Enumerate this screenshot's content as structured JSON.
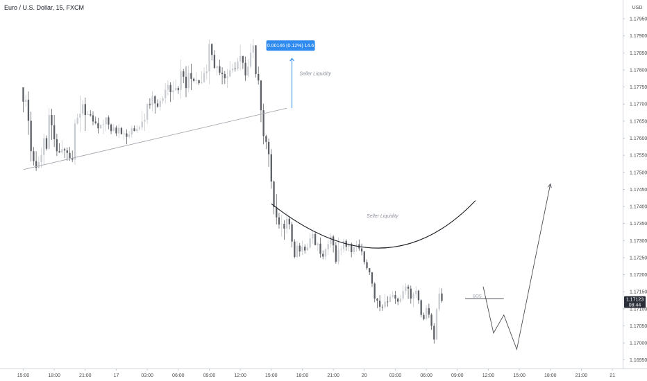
{
  "header": {
    "title": "Euro / U.S. Dollar, 15, FXCM",
    "currency": "USD"
  },
  "chart_data": {
    "type": "candlestick",
    "title": "Euro / U.S. Dollar, 15, FXCM",
    "ylabel": "USD",
    "ylim": [
      1.16925,
      1.18005
    ],
    "y_ticks": [
      "1.17950",
      "1.17900",
      "1.17850",
      "1.17800",
      "1.17750",
      "1.17700",
      "1.17650",
      "1.17600",
      "1.17550",
      "1.17500",
      "1.17450",
      "1.17400",
      "1.17350",
      "1.17300",
      "1.17250",
      "1.17200",
      "1.17150",
      "1.17100",
      "1.17050",
      "1.17000",
      "1.16950"
    ],
    "y_tick_values": [
      1.1795,
      1.179,
      1.1785,
      1.178,
      1.1775,
      1.177,
      1.1765,
      1.176,
      1.1755,
      1.175,
      1.1745,
      1.174,
      1.1735,
      1.173,
      1.1725,
      1.172,
      1.1715,
      1.171,
      1.1705,
      1.17,
      1.1695
    ],
    "x_ticks": [
      "15:00",
      "18:00",
      "21:00",
      "17",
      "03:00",
      "06:00",
      "09:00",
      "12:00",
      "15:00",
      "18:00",
      "21:00",
      "20",
      "03:00",
      "06:00",
      "09:00",
      "12:00",
      "15:00",
      "18:00",
      "21:00",
      "21"
    ],
    "x_tick_index": [
      0,
      12,
      24,
      36,
      48,
      60,
      72,
      84,
      96,
      108,
      120,
      132,
      144,
      156,
      168,
      180,
      192,
      204,
      216,
      228
    ],
    "x_range": [
      -9,
      232
    ],
    "grid": false,
    "current_price": {
      "value": 1.17123,
      "label": "1.17123",
      "countdown": "08:44"
    },
    "measure_label": "0.00146 (0.12%) 14.6",
    "annotations": [
      {
        "text": "Seller Liquidity",
        "x": 113,
        "y": 1.17785
      },
      {
        "text": "Seller Liquidity",
        "x": 139,
        "y": 1.17368
      },
      {
        "text": "BOS",
        "x": 174,
        "y": 1.17133
      }
    ],
    "trendline": [
      {
        "x": 0,
        "y": 1.17508
      },
      {
        "x": 102,
        "y": 1.17688
      }
    ],
    "measure_arrow": {
      "x": 104,
      "y_from": 1.17688,
      "y_to": 1.17834
    },
    "curve": [
      {
        "x": 96,
        "y": 1.17408
      },
      {
        "x": 138,
        "y": 1.17278
      },
      {
        "x": 175,
        "y": 1.17417
      }
    ],
    "bos_line": [
      {
        "x": 171,
        "y": 1.1713
      },
      {
        "x": 186,
        "y": 1.1713
      }
    ],
    "projection": [
      {
        "x": 178,
        "y": 1.17165
      },
      {
        "x": 182,
        "y": 1.17029
      },
      {
        "x": 186,
        "y": 1.17082
      },
      {
        "x": 191,
        "y": 1.16981
      },
      {
        "x": 204,
        "y": 1.17466
      }
    ],
    "candles": [
      [
        1.17749,
        1.17707,
        1.17738,
        1.17676
      ],
      [
        1.17707,
        1.17713,
        1.17727,
        1.17692
      ],
      [
        1.17713,
        1.17651,
        1.17737,
        1.1761
      ],
      [
        1.17651,
        1.17562,
        1.17678,
        1.17532
      ],
      [
        1.17562,
        1.17533,
        1.17574,
        1.1752
      ],
      [
        1.17533,
        1.17513,
        1.17562,
        1.17504
      ],
      [
        1.17513,
        1.1753,
        1.17547,
        1.17511
      ],
      [
        1.1753,
        1.17551,
        1.17571,
        1.17513
      ],
      [
        1.17551,
        1.176,
        1.17613,
        1.17521
      ],
      [
        1.176,
        1.17569,
        1.17608,
        1.17564
      ],
      [
        1.17569,
        1.17668,
        1.17689,
        1.17566
      ],
      [
        1.17668,
        1.17638,
        1.17686,
        1.17595
      ],
      [
        1.17638,
        1.17597,
        1.17668,
        1.17574
      ],
      [
        1.17597,
        1.17562,
        1.17613,
        1.17548
      ],
      [
        1.17562,
        1.17558,
        1.17585,
        1.17557
      ],
      [
        1.17558,
        1.17568,
        1.17594,
        1.17553
      ],
      [
        1.17568,
        1.17564,
        1.17572,
        1.17542
      ],
      [
        1.17564,
        1.17557,
        1.17573,
        1.17534
      ],
      [
        1.17557,
        1.17542,
        1.17574,
        1.17534
      ],
      [
        1.17542,
        1.17537,
        1.17564,
        1.1753
      ],
      [
        1.17537,
        1.17643,
        1.17655,
        1.17522
      ],
      [
        1.17643,
        1.1766,
        1.17672,
        1.1764
      ],
      [
        1.1766,
        1.17672,
        1.17725,
        1.17618
      ],
      [
        1.17672,
        1.177,
        1.17712,
        1.17666
      ],
      [
        1.177,
        1.17668,
        1.17719,
        1.17621
      ],
      [
        1.17668,
        1.1767,
        1.17681,
        1.17668
      ],
      [
        1.1767,
        1.17667,
        1.17682,
        1.17663
      ],
      [
        1.17667,
        1.17649,
        1.17679,
        1.17638
      ],
      [
        1.17649,
        1.17644,
        1.17663,
        1.17641
      ],
      [
        1.17644,
        1.17629,
        1.1766,
        1.17614
      ],
      [
        1.17629,
        1.17639,
        1.1764,
        1.17628
      ],
      [
        1.17639,
        1.17641,
        1.17654,
        1.17612
      ],
      [
        1.17641,
        1.17661,
        1.17661,
        1.1762
      ],
      [
        1.17661,
        1.1764,
        1.17667,
        1.17626
      ],
      [
        1.1764,
        1.17621,
        1.17643,
        1.17612
      ],
      [
        1.17621,
        1.17631,
        1.17641,
        1.17619
      ],
      [
        1.17631,
        1.17614,
        1.17637,
        1.17606
      ],
      [
        1.17614,
        1.1763,
        1.17642,
        1.17601
      ],
      [
        1.1763,
        1.17612,
        1.17633,
        1.17611
      ],
      [
        1.17612,
        1.17614,
        1.17624,
        1.17595
      ],
      [
        1.17614,
        1.17604,
        1.17626,
        1.17582
      ],
      [
        1.17604,
        1.17611,
        1.17621,
        1.176
      ],
      [
        1.17611,
        1.17629,
        1.17637,
        1.17601
      ],
      [
        1.17629,
        1.17621,
        1.17637,
        1.1762
      ],
      [
        1.17621,
        1.17627,
        1.17638,
        1.17616
      ],
      [
        1.17627,
        1.17632,
        1.17637,
        1.17622
      ],
      [
        1.17632,
        1.17649,
        1.17681,
        1.17624
      ],
      [
        1.17649,
        1.17654,
        1.17672,
        1.17621
      ],
      [
        1.17654,
        1.177,
        1.17703,
        1.17642
      ],
      [
        1.177,
        1.17697,
        1.17717,
        1.17686
      ],
      [
        1.17697,
        1.17723,
        1.17738,
        1.17679
      ],
      [
        1.17723,
        1.17702,
        1.17726,
        1.17672
      ],
      [
        1.17702,
        1.17692,
        1.17714,
        1.17689
      ],
      [
        1.17692,
        1.17709,
        1.17718,
        1.17681
      ],
      [
        1.17709,
        1.17717,
        1.17723,
        1.17701
      ],
      [
        1.17717,
        1.17742,
        1.17761,
        1.17701
      ],
      [
        1.17742,
        1.17756,
        1.1777,
        1.17725
      ],
      [
        1.17756,
        1.17735,
        1.17764,
        1.17706
      ],
      [
        1.17735,
        1.1774,
        1.17767,
        1.17712
      ],
      [
        1.1774,
        1.17747,
        1.17772,
        1.17744
      ],
      [
        1.17747,
        1.17741,
        1.17753,
        1.1773
      ],
      [
        1.17741,
        1.17796,
        1.1783,
        1.17716
      ],
      [
        1.17796,
        1.1778,
        1.17803,
        1.17761
      ],
      [
        1.1778,
        1.17747,
        1.17811,
        1.1772
      ],
      [
        1.17747,
        1.17791,
        1.17813,
        1.17735
      ],
      [
        1.17791,
        1.17774,
        1.17818,
        1.17741
      ],
      [
        1.17774,
        1.17768,
        1.17778,
        1.17764
      ],
      [
        1.17768,
        1.1777,
        1.17793,
        1.17758
      ],
      [
        1.1777,
        1.17761,
        1.17771,
        1.17756
      ],
      [
        1.17761,
        1.17764,
        1.17797,
        1.17759
      ],
      [
        1.17764,
        1.17791,
        1.17808,
        1.17763
      ],
      [
        1.17791,
        1.17796,
        1.17816,
        1.17772
      ],
      [
        1.17796,
        1.17876,
        1.17889,
        1.17758
      ],
      [
        1.17876,
        1.17844,
        1.17878,
        1.17828
      ],
      [
        1.17844,
        1.17806,
        1.17858,
        1.17803
      ],
      [
        1.17806,
        1.17811,
        1.17813,
        1.17783
      ],
      [
        1.17811,
        1.17792,
        1.1783,
        1.17785
      ],
      [
        1.17792,
        1.17788,
        1.17808,
        1.17758
      ],
      [
        1.17788,
        1.17776,
        1.17797,
        1.17759
      ],
      [
        1.17776,
        1.17781,
        1.17803,
        1.17747
      ],
      [
        1.17781,
        1.17799,
        1.17826,
        1.17779
      ],
      [
        1.17799,
        1.17804,
        1.17818,
        1.17791
      ],
      [
        1.17804,
        1.17802,
        1.17823,
        1.17795
      ],
      [
        1.17802,
        1.17825,
        1.17836,
        1.17798
      ],
      [
        1.17825,
        1.17841,
        1.17874,
        1.17799
      ],
      [
        1.17841,
        1.17821,
        1.17841,
        1.17803
      ],
      [
        1.17821,
        1.17784,
        1.17839,
        1.17768
      ],
      [
        1.17784,
        1.1781,
        1.17832,
        1.17778
      ],
      [
        1.1781,
        1.17851,
        1.17877,
        1.17805
      ],
      [
        1.17851,
        1.17872,
        1.17891,
        1.17834
      ],
      [
        1.17872,
        1.17788,
        1.17873,
        1.17778
      ],
      [
        1.17788,
        1.17769,
        1.1781,
        1.17757
      ],
      [
        1.17769,
        1.17682,
        1.1777,
        1.17647
      ],
      [
        1.17682,
        1.17606,
        1.17701,
        1.17582
      ],
      [
        1.17606,
        1.17589,
        1.1761,
        1.17568
      ],
      [
        1.17589,
        1.17553,
        1.17599,
        1.17516
      ],
      [
        1.17553,
        1.17473,
        1.17568,
        1.17452
      ],
      [
        1.17473,
        1.17398,
        1.17476,
        1.17377
      ],
      [
        1.17398,
        1.17368,
        1.17436,
        1.17347
      ],
      [
        1.17368,
        1.17347,
        1.17382,
        1.17335
      ],
      [
        1.17347,
        1.17349,
        1.17376,
        1.17311
      ],
      [
        1.17349,
        1.17335,
        1.1736,
        1.17302
      ],
      [
        1.17335,
        1.17364,
        1.17383,
        1.1732
      ],
      [
        1.17364,
        1.17348,
        1.17371,
        1.17333
      ],
      [
        1.17348,
        1.17297,
        1.17355,
        1.1728
      ],
      [
        1.17297,
        1.17252,
        1.17304,
        1.17248
      ],
      [
        1.17252,
        1.17285,
        1.17299,
        1.17249
      ],
      [
        1.17285,
        1.17268,
        1.17293,
        1.17253
      ],
      [
        1.17268,
        1.17282,
        1.173,
        1.17257
      ],
      [
        1.17282,
        1.17271,
        1.17289,
        1.17262
      ],
      [
        1.17271,
        1.1728,
        1.17292,
        1.17272
      ],
      [
        1.1728,
        1.17306,
        1.17322,
        1.17276
      ],
      [
        1.17306,
        1.17319,
        1.17328,
        1.17291
      ],
      [
        1.17319,
        1.17287,
        1.17326,
        1.17286
      ],
      [
        1.17287,
        1.17291,
        1.17295,
        1.17269
      ],
      [
        1.17291,
        1.17261,
        1.17309,
        1.1725
      ],
      [
        1.17261,
        1.17253,
        1.17271,
        1.17245
      ],
      [
        1.17253,
        1.17274,
        1.17278,
        1.17243
      ],
      [
        1.17274,
        1.1729,
        1.17302,
        1.17258
      ],
      [
        1.1729,
        1.17312,
        1.17321,
        1.17279
      ],
      [
        1.17312,
        1.17286,
        1.17316,
        1.17265
      ],
      [
        1.17286,
        1.17238,
        1.17296,
        1.17232
      ],
      [
        1.17238,
        1.17273,
        1.17309,
        1.1723
      ],
      [
        1.17273,
        1.17275,
        1.17285,
        1.17257
      ],
      [
        1.17275,
        1.17299,
        1.17305,
        1.17265
      ],
      [
        1.17299,
        1.17282,
        1.17304,
        1.1727
      ],
      [
        1.17282,
        1.1729,
        1.17295,
        1.17268
      ],
      [
        1.1729,
        1.17266,
        1.17294,
        1.17251
      ],
      [
        1.17266,
        1.17281,
        1.17283,
        1.1726
      ],
      [
        1.17281,
        1.17289,
        1.173,
        1.17268
      ],
      [
        1.17289,
        1.17277,
        1.17303,
        1.1727
      ],
      [
        1.17277,
        1.17268,
        1.17291,
        1.17257
      ],
      [
        1.17268,
        1.17237,
        1.1727,
        1.1723
      ],
      [
        1.17237,
        1.17219,
        1.17245,
        1.17214
      ],
      [
        1.17219,
        1.17207,
        1.1722,
        1.17199
      ],
      [
        1.17207,
        1.17174,
        1.17208,
        1.17164
      ],
      [
        1.17174,
        1.1713,
        1.17178,
        1.17119
      ],
      [
        1.1713,
        1.17124,
        1.17132,
        1.17102
      ],
      [
        1.17124,
        1.17106,
        1.1714,
        1.17093
      ],
      [
        1.17106,
        1.17105,
        1.17113,
        1.17094
      ],
      [
        1.17105,
        1.17121,
        1.17144,
        1.171
      ],
      [
        1.17121,
        1.1712,
        1.17137,
        1.17106
      ],
      [
        1.1712,
        1.17135,
        1.17143,
        1.17123
      ],
      [
        1.17135,
        1.1714,
        1.17151,
        1.17131
      ],
      [
        1.1714,
        1.1713,
        1.17152,
        1.17114
      ],
      [
        1.1713,
        1.17121,
        1.17133,
        1.17111
      ],
      [
        1.17121,
        1.1713,
        1.17141,
        1.17117
      ],
      [
        1.1713,
        1.17152,
        1.1717,
        1.17125
      ],
      [
        1.17152,
        1.17165,
        1.17175,
        1.17141
      ],
      [
        1.17165,
        1.17159,
        1.17171,
        1.17129
      ],
      [
        1.17159,
        1.1713,
        1.17168,
        1.17115
      ],
      [
        1.1713,
        1.17143,
        1.17149,
        1.17105
      ],
      [
        1.17143,
        1.17153,
        1.17166,
        1.17132
      ],
      [
        1.17153,
        1.17125,
        1.17156,
        1.17114
      ],
      [
        1.17125,
        1.17082,
        1.17128,
        1.17075
      ],
      [
        1.17082,
        1.1707,
        1.17089,
        1.17066
      ],
      [
        1.1707,
        1.17102,
        1.17111,
        1.17068
      ],
      [
        1.17102,
        1.17083,
        1.17115,
        1.17073
      ],
      [
        1.17083,
        1.1705,
        1.17087,
        1.17038
      ],
      [
        1.1705,
        1.1701,
        1.17058,
        1.16998
      ],
      [
        1.1701,
        1.17099,
        1.17103,
        1.17008
      ],
      [
        1.17099,
        1.17145,
        1.17162,
        1.17092
      ],
      [
        1.17145,
        1.17123,
        1.1716,
        1.17118
      ]
    ]
  }
}
